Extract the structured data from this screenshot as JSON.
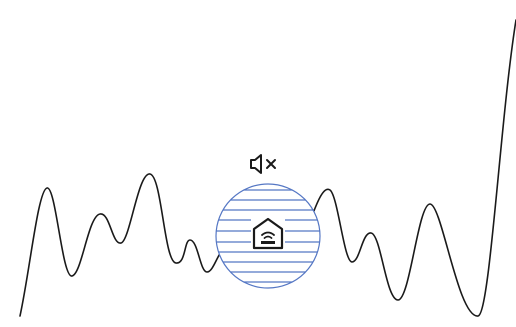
{
  "screen": {
    "background": "#ffffff",
    "line_color": "#1a1a1a",
    "accent_color": "#5577c4"
  },
  "illustration": {
    "waveform": "sound-wave-line",
    "mute_indicator": "speaker-muted-icon",
    "circle_badge": "striped-circle-badge",
    "center_icon": "home-wifi-icon"
  }
}
